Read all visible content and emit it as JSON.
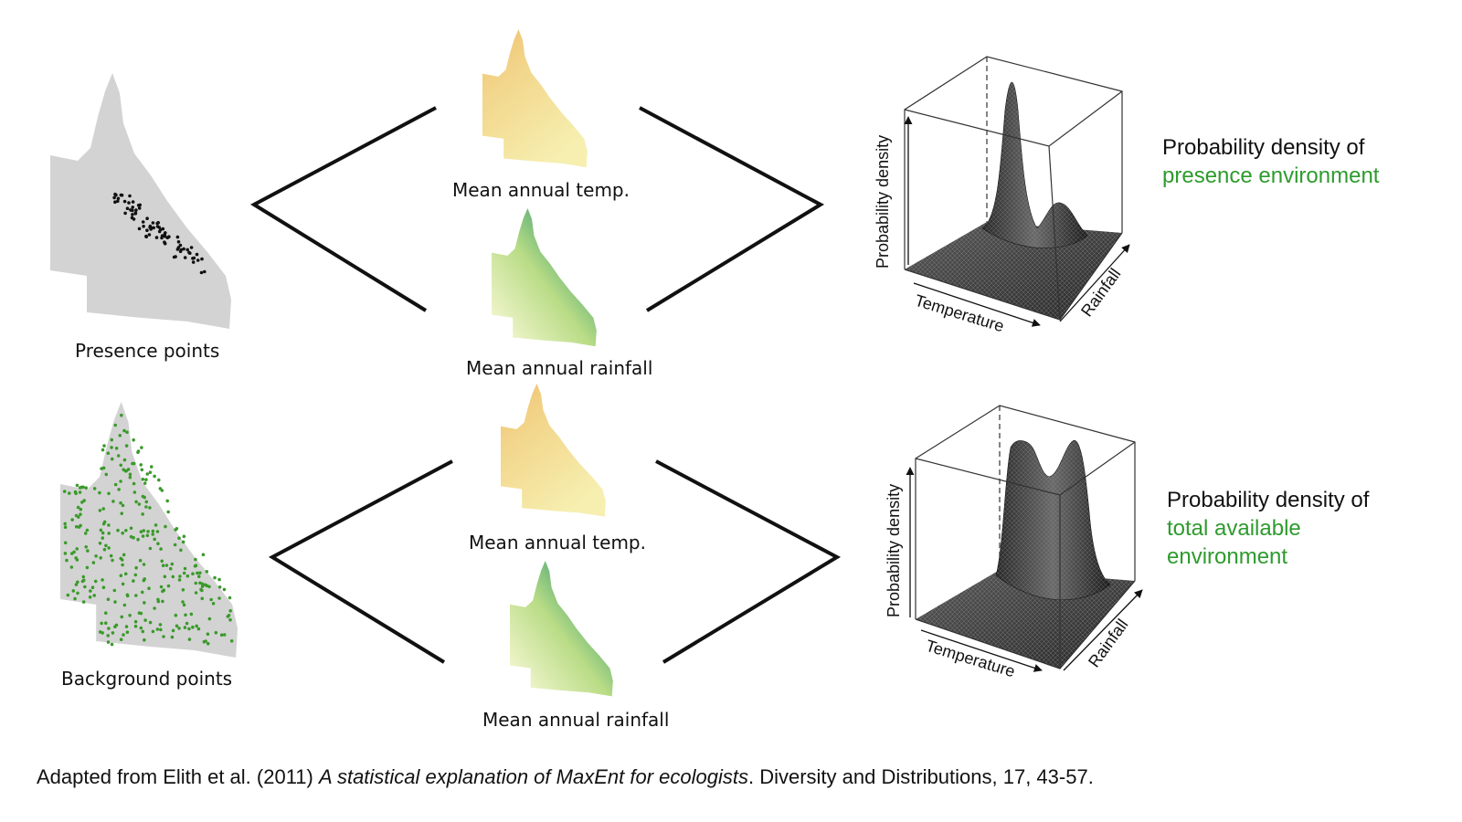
{
  "colors": {
    "map_grey": "#d3d3d3",
    "presence_dot": "#111111",
    "background_dot": "#3a9a2a",
    "accent_green": "#2e9b2e",
    "temp_warm": "#f0c070",
    "temp_cool": "#f6eba8",
    "rain_wet": "#2f8a6e",
    "rain_dry": "#f3f6cc",
    "surface": "#3a3a3a"
  },
  "icons": [
    "queensland-map",
    "temperature-map",
    "rainfall-map",
    "density-surface-3d"
  ],
  "rows": [
    {
      "points_label": "Presence points",
      "temp_label": "Mean annual temp.",
      "rain_label": "Mean annual rainfall",
      "density_heading_line1": "Probability density of",
      "density_heading_line2": "presence environment",
      "density_heading_line3": "",
      "axis_z": "Probability density",
      "axis_x": "Temperature",
      "axis_y": "Rainfall"
    },
    {
      "points_label": "Background points",
      "temp_label": "Mean annual temp.",
      "rain_label": "Mean annual rainfall",
      "density_heading_line1": "Probability density of",
      "density_heading_line2": "total available",
      "density_heading_line3": "environment",
      "axis_z": "Probability density",
      "axis_x": "Temperature",
      "axis_y": "Rainfall"
    }
  ],
  "citation": {
    "prefix": "Adapted from Elith et al. (2011) ",
    "title": "A statistical explanation of MaxEnt for ecologists",
    "suffix": ". Diversity and Distributions, 17, 43-57."
  }
}
